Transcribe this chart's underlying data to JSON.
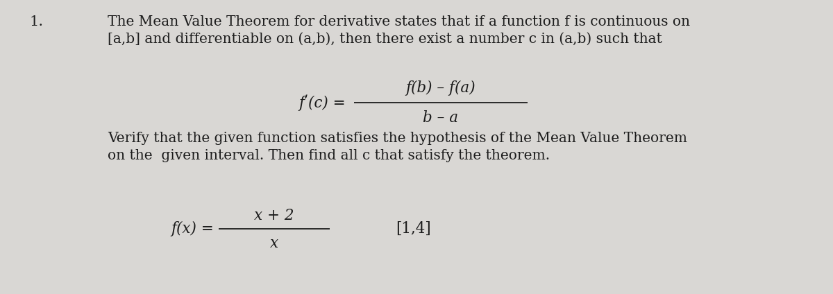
{
  "background_color": "#d9d7d4",
  "text_color": "#1c1c1c",
  "number_label": "1.",
  "line1": "The Mean Value Theorem for derivative states that if a function f is continuous on",
  "line2": "[a,b] and differentiable on (a,b), then there exist a number c in (a,b) such that",
  "formula_left": "fʹ(c) = ",
  "formula_numerator": "f(b) – f(a)",
  "formula_denominator": "b – a",
  "verify_line1": "Verify that the given function satisfies the hypothesis of the Mean Value Theorem",
  "verify_line2": "on the  given interval. Then find all c that satisfy the theorem.",
  "fx_label": "f(x) = ",
  "fx_numerator": "x + 2",
  "fx_denominator": "x",
  "interval": "[1,4]",
  "main_fontsize": 14.5,
  "formula_fontsize": 15.5,
  "number_fontsize": 15,
  "fig_width": 12.0,
  "fig_height": 4.24
}
